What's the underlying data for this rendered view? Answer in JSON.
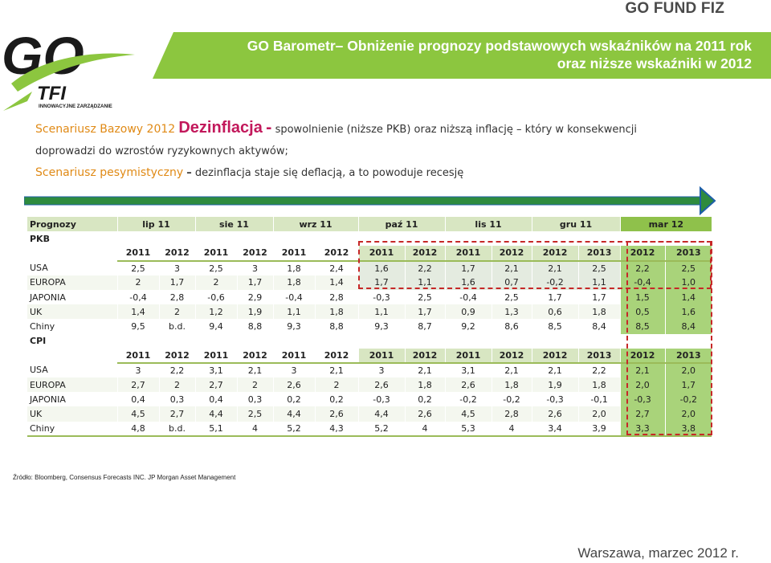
{
  "header": {
    "brand": "GO FUND FIZ",
    "logo_main": "GO",
    "logo_tfi": "TFI",
    "logo_tagline": "INNOWACYJNE ZARZĄDZANIE",
    "title_line1": "GO Barometr– Obniżenie prognozy podstawowych wskaźników na 2011 rok",
    "title_line2": "oraz niższe wskaźniki w 2012"
  },
  "scenarios": {
    "base_label": "Scenariusz Bazowy 2012",
    "deflation_word": "Dezinflacja",
    "dash": "-",
    "base_text_a": "spowolnienie (niższe PKB) oraz niższą inflację – który w konsekwencji",
    "base_text_b": "doprowadzi do wzrostów ryzykownych aktywów;",
    "pess_label": "Scenariusz pesymistyczny",
    "pess_dash": "–",
    "pess_text": "dezinflacja staje się deflacją, a to powoduje recesję"
  },
  "table": {
    "header": [
      "Prognozy",
      "lip 11",
      "sie 11",
      "wrz 11",
      "paź 11",
      "lis 11",
      "gru 11",
      "mar 12"
    ],
    "pkb_label": "PKB",
    "cpi_label": "CPI",
    "years": [
      "2011",
      "2012",
      "2011",
      "2012",
      "2011",
      "2012",
      "2011",
      "2012",
      "2011",
      "2012",
      "2012",
      "2013",
      "2012",
      "2013"
    ],
    "pkb_rows": [
      {
        "country": "USA",
        "values": [
          "2,5",
          "3",
          "2,5",
          "3",
          "1,8",
          "2,4",
          "1,6",
          "2,2",
          "1,7",
          "2,1",
          "2,1",
          "2,5",
          "2,2",
          "2,5"
        ]
      },
      {
        "country": "EUROPA",
        "values": [
          "2",
          "1,7",
          "2",
          "1,7",
          "1,8",
          "1,4",
          "1,7",
          "1,1",
          "1,6",
          "0,7",
          "-0,2",
          "1,1",
          "-0,4",
          "1,0"
        ]
      },
      {
        "country": "JAPONIA",
        "values": [
          "-0,4",
          "2,8",
          "-0,6",
          "2,9",
          "-0,4",
          "2,8",
          "-0,3",
          "2,5",
          "-0,4",
          "2,5",
          "1,7",
          "1,7",
          "1,5",
          "1,4"
        ]
      },
      {
        "country": "UK",
        "values": [
          "1,4",
          "2",
          "1,2",
          "1,9",
          "1,1",
          "1,8",
          "1,1",
          "1,7",
          "0,9",
          "1,3",
          "0,6",
          "1,8",
          "0,5",
          "1,6"
        ]
      },
      {
        "country": "Chiny",
        "values": [
          "9,5",
          "b.d.",
          "9,4",
          "8,8",
          "9,3",
          "8,8",
          "9,3",
          "8,7",
          "9,2",
          "8,6",
          "8,5",
          "8,4",
          "8,5",
          "8,4"
        ]
      }
    ],
    "cpi_rows": [
      {
        "country": "USA",
        "values": [
          "3",
          "2,2",
          "3,1",
          "2,1",
          "3",
          "2,1",
          "3",
          "2,1",
          "3,1",
          "2,1",
          "2,1",
          "2,2",
          "2,1",
          "2,0"
        ]
      },
      {
        "country": "EUROPA",
        "values": [
          "2,7",
          "2",
          "2,7",
          "2",
          "2,6",
          "2",
          "2,6",
          "1,8",
          "2,6",
          "1,8",
          "1,9",
          "1,8",
          "2,0",
          "1,7"
        ]
      },
      {
        "country": "JAPONIA",
        "values": [
          "0,4",
          "0,3",
          "0,4",
          "0,3",
          "0,2",
          "0,2",
          "-0,3",
          "0,2",
          "-0,2",
          "-0,2",
          "-0,3",
          "-0,1",
          "-0,3",
          "-0,2"
        ]
      },
      {
        "country": "UK",
        "values": [
          "4,5",
          "2,7",
          "4,4",
          "2,5",
          "4,4",
          "2,6",
          "4,4",
          "2,6",
          "4,5",
          "2,8",
          "2,6",
          "2,0",
          "2,7",
          "2,0"
        ]
      },
      {
        "country": "Chiny",
        "values": [
          "4,8",
          "b.d.",
          "5,1",
          "4",
          "5,2",
          "4,3",
          "5,2",
          "4",
          "5,3",
          "4",
          "3,4",
          "3,9",
          "3,3",
          "3,8"
        ]
      }
    ]
  },
  "footer": {
    "source": "Źródło: Bloomberg, Consensus Forecasts INC. JP Morgan Asset Management",
    "place_date": "Warszawa, marzec 2012 r."
  },
  "colors": {
    "banner_green": "#8cc63f",
    "header_green": "#d8e6c2",
    "march_green": "#a9d37a",
    "highlight_red": "#c62828",
    "orange": "#e08a16",
    "magenta": "#c2185b"
  },
  "icons": [
    "swoosh-icon",
    "forward-arrow-icon"
  ]
}
